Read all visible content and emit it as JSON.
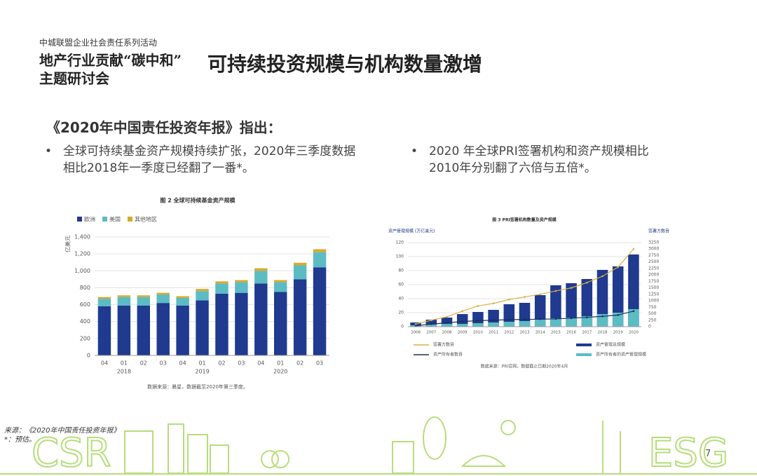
{
  "header": {
    "org": "中城联盟企业社会责任系列活动",
    "event_line1": "地产行业贡献“碳中和”",
    "event_line2": "主题研讨会",
    "title": "可持续投资规模与机构数量激增"
  },
  "intro": "《2020年中国责任投资年报》指出：",
  "bullets": [
    "全球可持续基金资产规模持续扩张，2020年三季度数据相比2018年一季度已经翻了一番*。",
    "2020 年全球PRI签署机构和资产规模相比2010年分别翻了六倍与五倍*。"
  ],
  "footnotes": [
    "来源：《2020年中国责任投资年报》",
    "*：预估。"
  ],
  "page_number": "7",
  "decor": [
    "CSR",
    "ESG"
  ],
  "chart_data": [
    {
      "type": "bar",
      "stacked": true,
      "title": "图 2 全球可持续基金资产规模",
      "ylabel": "亿美元",
      "categories": [
        "04",
        "01",
        "02",
        "03",
        "04",
        "01",
        "02",
        "03",
        "04",
        "01",
        "02",
        "03"
      ],
      "category_groups": [
        null,
        "2018",
        null,
        null,
        null,
        "2019",
        null,
        null,
        null,
        "2020",
        null,
        null
      ],
      "series": [
        {
          "name": "欧洲",
          "color": "#1f3a8f",
          "values": [
            580,
            590,
            590,
            620,
            590,
            650,
            730,
            740,
            850,
            750,
            900,
            1040
          ]
        },
        {
          "name": "美国",
          "color": "#5bbcc4",
          "values": [
            90,
            100,
            100,
            100,
            90,
            110,
            120,
            125,
            150,
            115,
            165,
            180
          ]
        },
        {
          "name": "其他地区",
          "color": "#d9a92b",
          "values": [
            20,
            20,
            20,
            20,
            20,
            25,
            25,
            25,
            30,
            25,
            30,
            35
          ]
        }
      ],
      "ylim": [
        0,
        1400
      ],
      "yticks": [
        0,
        200,
        400,
        600,
        800,
        {
          "value": 1000,
          "label": "1,000"
        },
        {
          "value": 1200,
          "label": "1,200"
        },
        {
          "value": 1400,
          "label": "1,400"
        }
      ],
      "grid": true,
      "source": "数据来源：晨星，数据截至2020年第三季度。"
    },
    {
      "type": "combo",
      "title": "图 3 PRI签署机构数量及资产规模",
      "ylabel": "资产管理规模 (万亿美元)",
      "y2label": "签署方数目",
      "categories": [
        "2006",
        "2007",
        "2008",
        "2009",
        "2010",
        "2011",
        "2012",
        "2013",
        "2014",
        "2015",
        "2016",
        "2017",
        "2018",
        "2019",
        "2020"
      ],
      "series": [
        {
          "name": "资产管理总规模",
          "kind": "bar",
          "color": "#1f3a8f",
          "values": [
            6,
            10,
            13,
            18,
            21,
            24,
            32,
            34,
            45,
            59,
            62,
            68,
            81,
            86,
            103
          ]
        },
        {
          "name": "资产所有者的资产管理规模",
          "kind": "bar",
          "color": "#5bbcc4",
          "values": [
            2,
            3,
            4,
            4,
            5,
            6,
            7,
            8,
            10,
            12,
            13,
            15,
            18,
            20,
            25
          ]
        },
        {
          "name": "签署方数目",
          "kind": "line",
          "axis": "y2",
          "color": "#d9b040",
          "values": [
            100,
            250,
            380,
            600,
            800,
            900,
            1050,
            1150,
            1250,
            1380,
            1500,
            1700,
            1950,
            2300,
            3000
          ]
        },
        {
          "name": "资产所有者数目",
          "kind": "line",
          "axis": "y2",
          "color": "#1e2d5c",
          "values": [
            30,
            100,
            150,
            200,
            230,
            250,
            270,
            280,
            290,
            300,
            330,
            360,
            400,
            450,
            600
          ]
        }
      ],
      "ylim": [
        0,
        120
      ],
      "yticks": [
        0,
        20,
        40,
        60,
        80,
        100,
        120
      ],
      "y2lim": [
        0,
        3250
      ],
      "y2ticks": [
        0,
        250,
        500,
        750,
        1000,
        1250,
        1500,
        1750,
        2000,
        2250,
        2500,
        2750,
        3000,
        3250
      ],
      "grid": true,
      "source": "数据来源：PRI官网，数据截止日期2020年4月"
    }
  ]
}
